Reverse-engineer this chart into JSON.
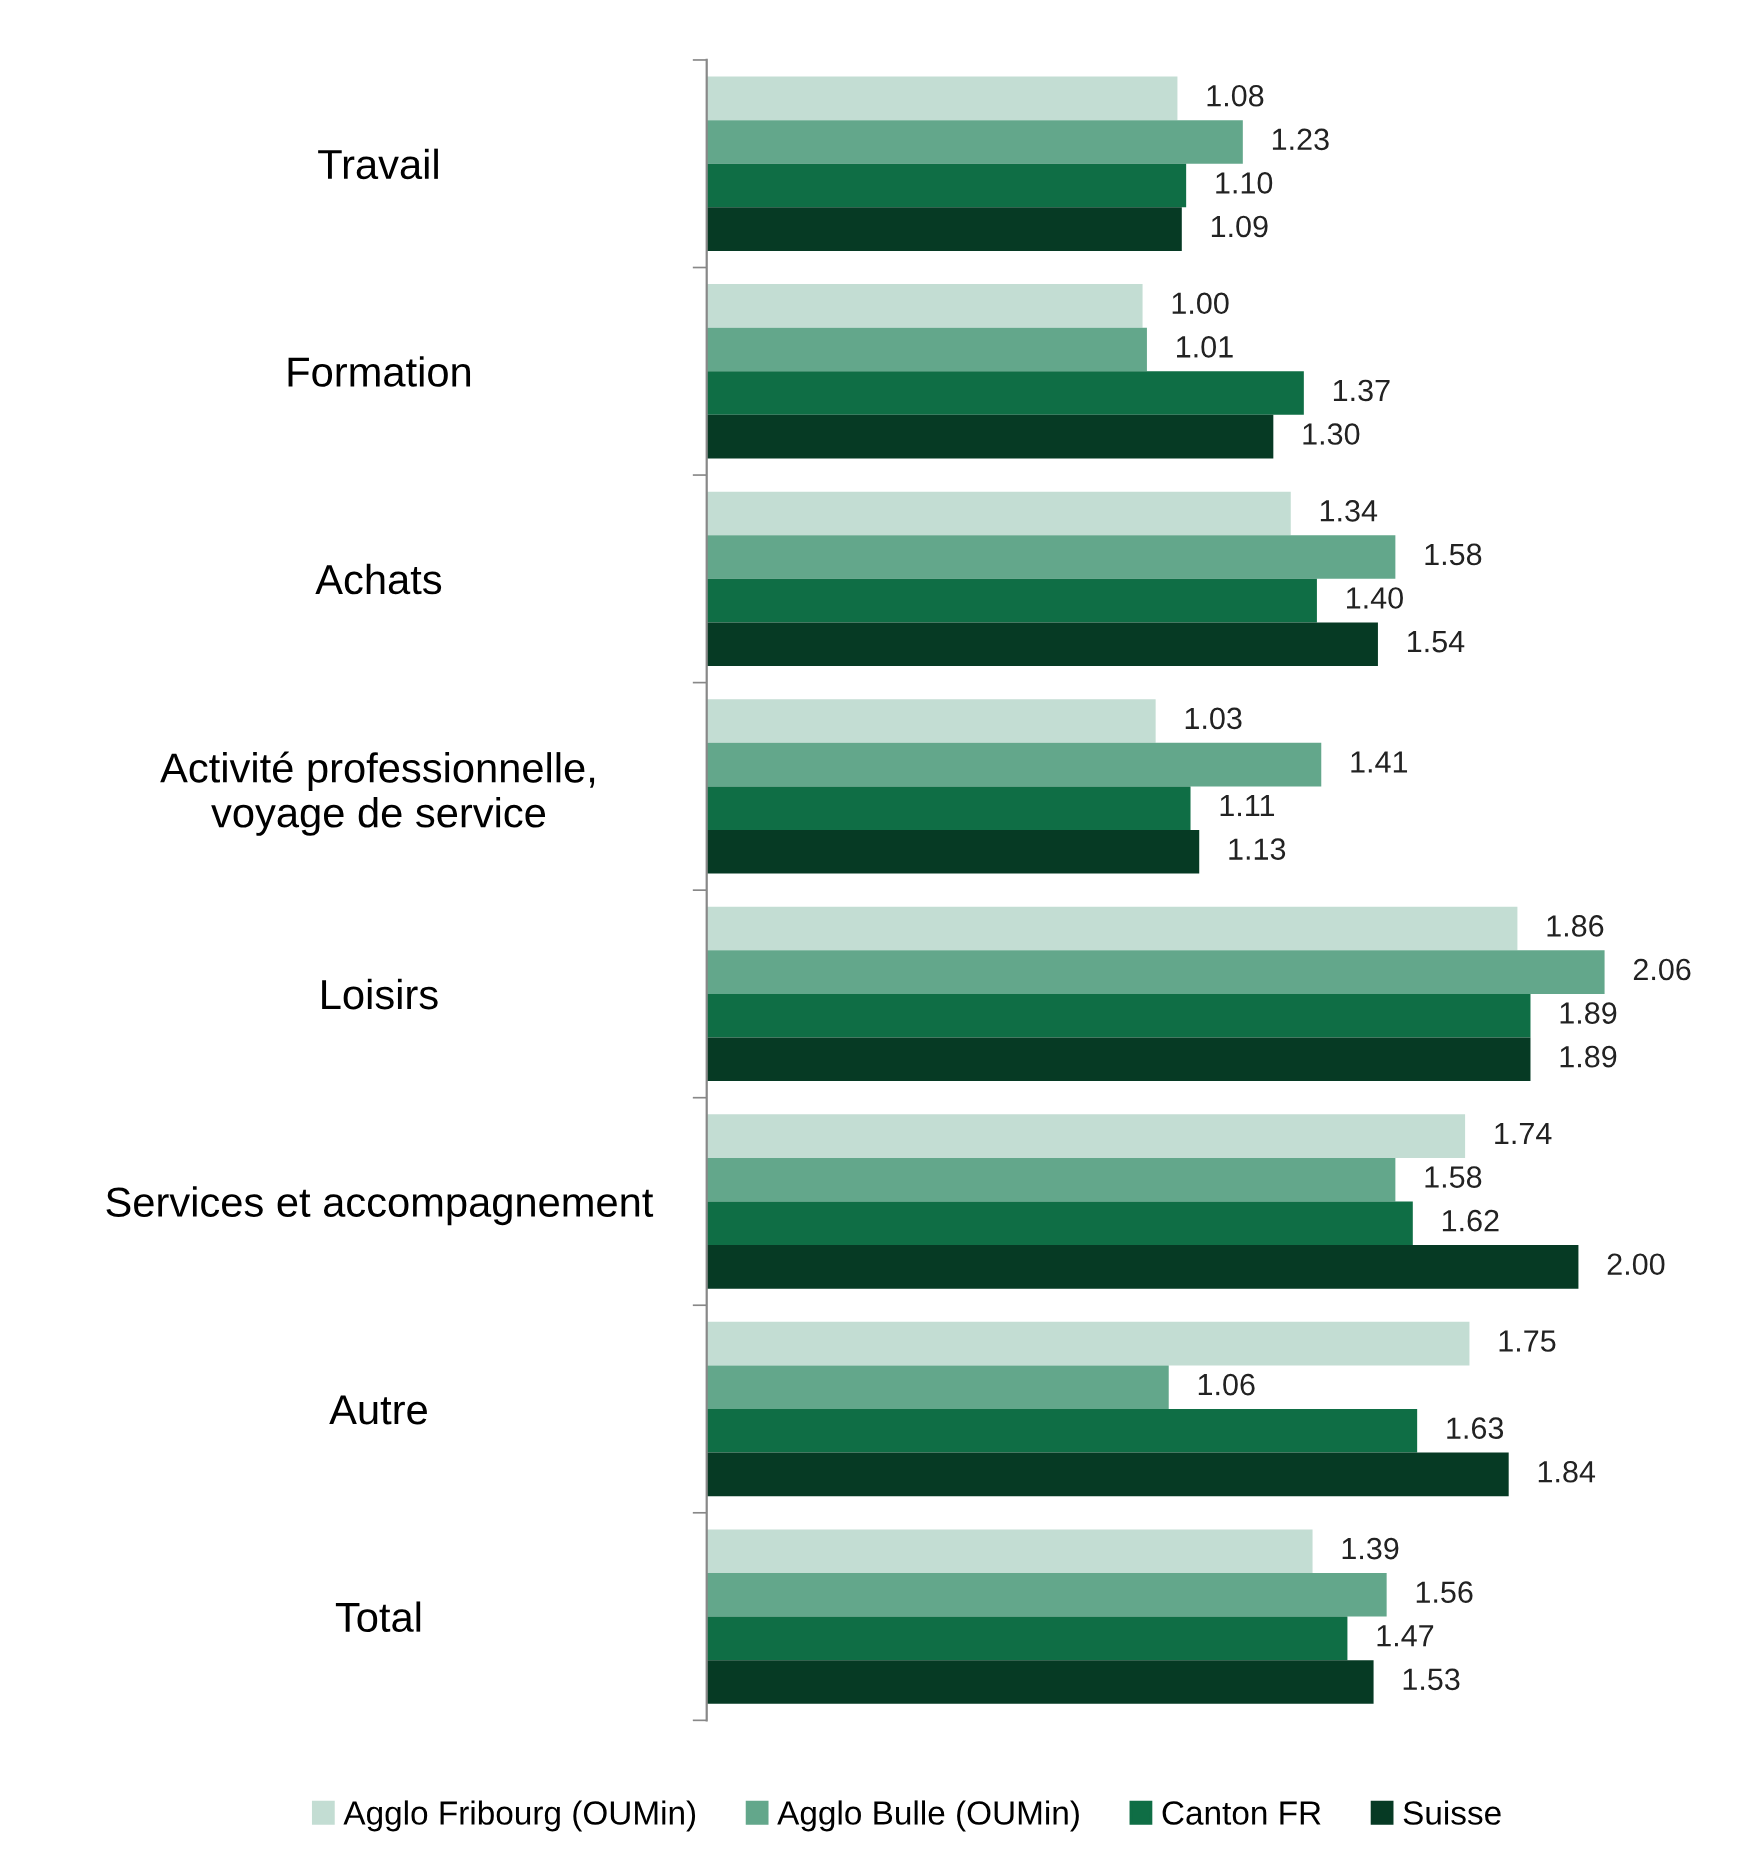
{
  "chart_data": {
    "type": "bar",
    "orientation": "horizontal",
    "categories": [
      "Travail",
      "Formation",
      "Achats",
      "Activité professionnelle,\nvoyage de service",
      "Loisirs",
      "Services et accompagnement",
      "Autre",
      "Total"
    ],
    "series": [
      {
        "name": "Agglo Fribourg (OUMin)",
        "color": "#c3ddd3",
        "values": [
          1.08,
          1.0,
          1.34,
          1.03,
          1.86,
          1.74,
          1.75,
          1.39
        ],
        "value_labels": [
          "1.08",
          "1.00",
          "1.34",
          "1.03",
          "1.86",
          "1.74",
          "1.75",
          "1.39"
        ]
      },
      {
        "name": "Agglo Bulle (OUMin)",
        "color": "#63a78b",
        "values": [
          1.23,
          1.01,
          1.58,
          1.41,
          2.06,
          1.58,
          1.06,
          1.56
        ],
        "value_labels": [
          "1.23",
          "1.01",
          "1.58",
          "1.41",
          "2.06",
          "1.58",
          "1.06",
          "1.56"
        ]
      },
      {
        "name": "Canton FR",
        "color": "#0f6e45",
        "values": [
          1.1,
          1.37,
          1.4,
          1.11,
          1.89,
          1.62,
          1.63,
          1.47
        ],
        "value_labels": [
          "1.10",
          "1.37",
          "1.40",
          "1.11",
          "1.89",
          "1.62",
          "1.63",
          "1.47"
        ]
      },
      {
        "name": "Suisse",
        "color": "#063a24",
        "values": [
          1.09,
          1.3,
          1.54,
          1.13,
          1.89,
          2.0,
          1.84,
          1.53
        ],
        "value_labels": [
          "1.09",
          "1.30",
          "1.54",
          "1.13",
          "1.89",
          "2.00",
          "1.84",
          "1.53"
        ]
      }
    ],
    "legend": "bottom",
    "grid": false
  }
}
